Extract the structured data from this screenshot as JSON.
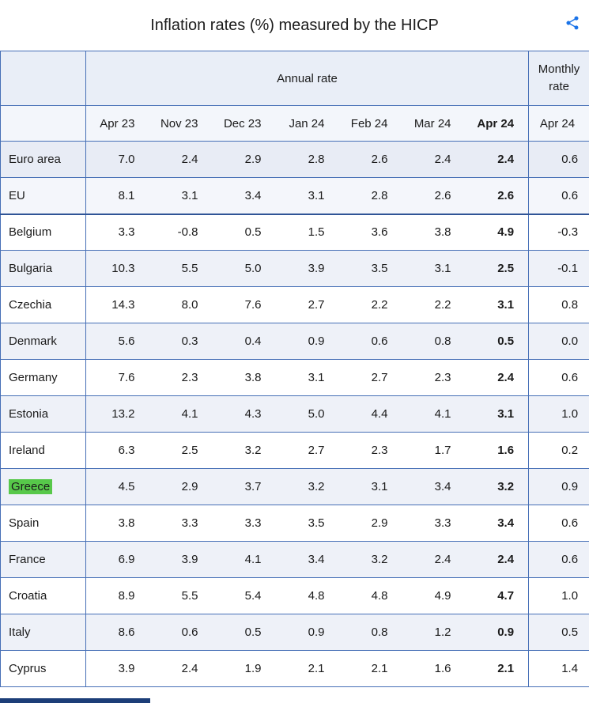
{
  "page": {
    "title": "Inflation rates (%) measured by the HICP"
  },
  "icons": {
    "share": "share-icon"
  },
  "chart_data": {
    "type": "table",
    "title": "Inflation rates (%) measured by the HICP",
    "group_headers": {
      "annual": "Annual rate",
      "monthly": "Monthly rate"
    },
    "columns": [
      "Apr 23",
      "Nov 23",
      "Dec 23",
      "Jan 24",
      "Feb 24",
      "Mar 24",
      "Apr 24",
      "Apr 24"
    ],
    "bold_column_index": 6,
    "monthly_column_index": 7,
    "rows": [
      {
        "label": "Euro area",
        "aggregate": true,
        "values": [
          "7.0",
          "2.4",
          "2.9",
          "2.8",
          "2.6",
          "2.4",
          "2.4",
          "0.6"
        ]
      },
      {
        "label": "EU",
        "aggregate": true,
        "values": [
          "8.1",
          "3.1",
          "3.4",
          "3.1",
          "2.8",
          "2.6",
          "2.6",
          "0.6"
        ]
      },
      {
        "label": "Belgium",
        "values": [
          "3.3",
          "-0.8",
          "0.5",
          "1.5",
          "3.6",
          "3.8",
          "4.9",
          "-0.3"
        ]
      },
      {
        "label": "Bulgaria",
        "values": [
          "10.3",
          "5.5",
          "5.0",
          "3.9",
          "3.5",
          "3.1",
          "2.5",
          "-0.1"
        ]
      },
      {
        "label": "Czechia",
        "values": [
          "14.3",
          "8.0",
          "7.6",
          "2.7",
          "2.2",
          "2.2",
          "3.1",
          "0.8"
        ]
      },
      {
        "label": "Denmark",
        "values": [
          "5.6",
          "0.3",
          "0.4",
          "0.9",
          "0.6",
          "0.8",
          "0.5",
          "0.0"
        ]
      },
      {
        "label": "Germany",
        "values": [
          "7.6",
          "2.3",
          "3.8",
          "3.1",
          "2.7",
          "2.3",
          "2.4",
          "0.6"
        ]
      },
      {
        "label": "Estonia",
        "values": [
          "13.2",
          "4.1",
          "4.3",
          "5.0",
          "4.4",
          "4.1",
          "3.1",
          "1.0"
        ]
      },
      {
        "label": "Ireland",
        "values": [
          "6.3",
          "2.5",
          "3.2",
          "2.7",
          "2.3",
          "1.7",
          "1.6",
          "0.2"
        ]
      },
      {
        "label": "Greece",
        "highlight": true,
        "values": [
          "4.5",
          "2.9",
          "3.7",
          "3.2",
          "3.1",
          "3.4",
          "3.2",
          "0.9"
        ]
      },
      {
        "label": "Spain",
        "values": [
          "3.8",
          "3.3",
          "3.3",
          "3.5",
          "2.9",
          "3.3",
          "3.4",
          "0.6"
        ]
      },
      {
        "label": "France",
        "values": [
          "6.9",
          "3.9",
          "4.1",
          "3.4",
          "3.2",
          "2.4",
          "2.4",
          "0.6"
        ]
      },
      {
        "label": "Croatia",
        "values": [
          "8.9",
          "5.5",
          "5.4",
          "4.8",
          "4.8",
          "4.9",
          "4.7",
          "1.0"
        ]
      },
      {
        "label": "Italy",
        "values": [
          "8.6",
          "0.6",
          "0.5",
          "0.9",
          "0.8",
          "1.2",
          "0.9",
          "0.5"
        ]
      },
      {
        "label": "Cyprus",
        "values": [
          "3.9",
          "2.4",
          "1.9",
          "2.1",
          "2.1",
          "1.6",
          "2.1",
          "1.4"
        ]
      }
    ]
  },
  "colors": {
    "accent_blue": "#1a73e8",
    "border_blue": "#466fb6",
    "border_blue_dark": "#2f5496",
    "header_bg": "#e9eef7",
    "column_header_bg": "#f3f6fb",
    "aggregate_row_bg": "#e8ecf5",
    "aggregate_row_bg_light": "#f4f6fb",
    "stripe_bg": "#eef1f8",
    "highlight_green": "#57c84a",
    "bottom_bar": "#1c3e78"
  }
}
